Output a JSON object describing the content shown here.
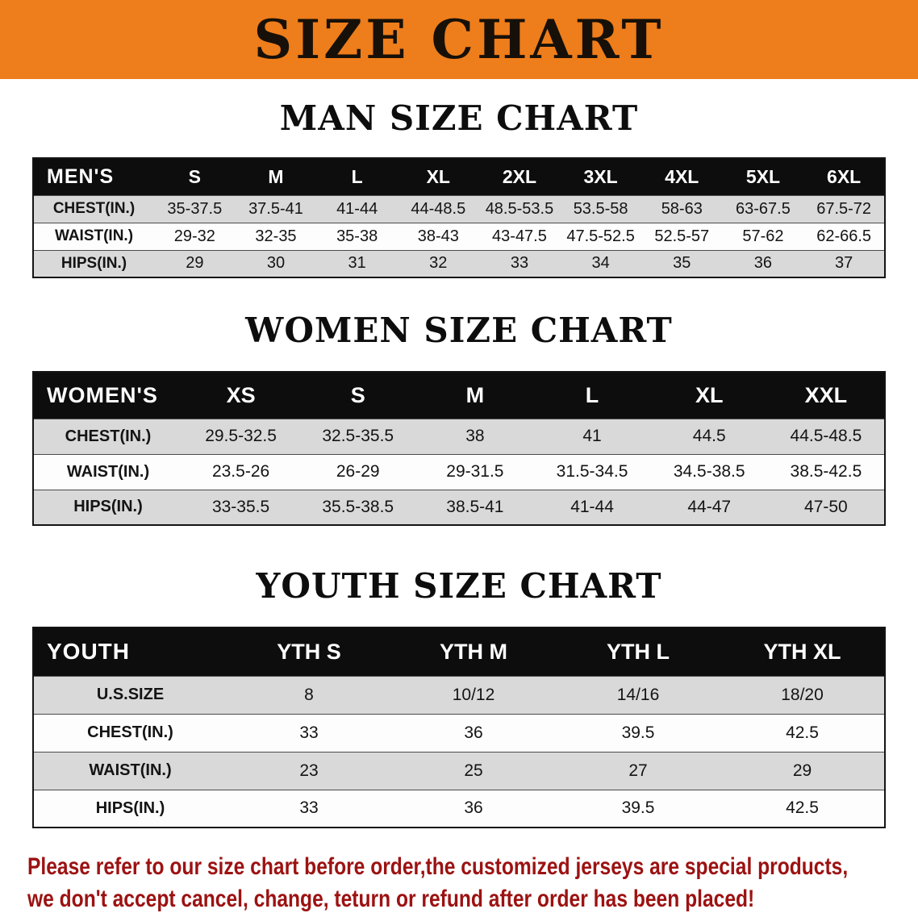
{
  "banner": {
    "title": "SIZE CHART"
  },
  "colors": {
    "banner_bg": "#ee7d1b",
    "table_header_bg": "#0d0d0d",
    "row_alt_gray": "#d9d9d9",
    "footer_text": "#9c1212"
  },
  "tables": {
    "men": {
      "title": "MAN SIZE CHART",
      "header": [
        "MEN'S",
        "S",
        "M",
        "L",
        "XL",
        "2XL",
        "3XL",
        "4XL",
        "5XL",
        "6XL"
      ],
      "rows": [
        [
          "CHEST(IN.)",
          "35-37.5",
          "37.5-41",
          "41-44",
          "44-48.5",
          "48.5-53.5",
          "53.5-58",
          "58-63",
          "63-67.5",
          "67.5-72"
        ],
        [
          "WAIST(IN.)",
          "29-32",
          "32-35",
          "35-38",
          "38-43",
          "43-47.5",
          "47.5-52.5",
          "52.5-57",
          "57-62",
          "62-66.5"
        ],
        [
          "HIPS(IN.)",
          "29",
          "30",
          "31",
          "32",
          "33",
          "34",
          "35",
          "36",
          "37"
        ]
      ]
    },
    "women": {
      "title": "WOMEN SIZE CHART",
      "header": [
        "WOMEN'S",
        "XS",
        "S",
        "M",
        "L",
        "XL",
        "XXL"
      ],
      "rows": [
        [
          "CHEST(IN.)",
          "29.5-32.5",
          "32.5-35.5",
          "38",
          "41",
          "44.5",
          "44.5-48.5"
        ],
        [
          "WAIST(IN.)",
          "23.5-26",
          "26-29",
          "29-31.5",
          "31.5-34.5",
          "34.5-38.5",
          "38.5-42.5"
        ],
        [
          "HIPS(IN.)",
          "33-35.5",
          "35.5-38.5",
          "38.5-41",
          "41-44",
          "44-47",
          "47-50"
        ]
      ]
    },
    "youth": {
      "title": "YOUTH SIZE CHART",
      "header": [
        "YOUTH",
        "YTH S",
        "YTH M",
        "YTH L",
        "YTH XL"
      ],
      "rows": [
        [
          "U.S.SIZE",
          "8",
          "10/12",
          "14/16",
          "18/20"
        ],
        [
          "CHEST(IN.)",
          "33",
          "36",
          "39.5",
          "42.5"
        ],
        [
          "WAIST(IN.)",
          "23",
          "25",
          "27",
          "29"
        ],
        [
          "HIPS(IN.)",
          "33",
          "36",
          "39.5",
          "42.5"
        ]
      ]
    }
  },
  "footer": {
    "line1": "Please refer to our size chart before order,the customized jerseys are special products,",
    "line2": "we don't accept cancel, change, teturn or refund after order has been placed!"
  }
}
